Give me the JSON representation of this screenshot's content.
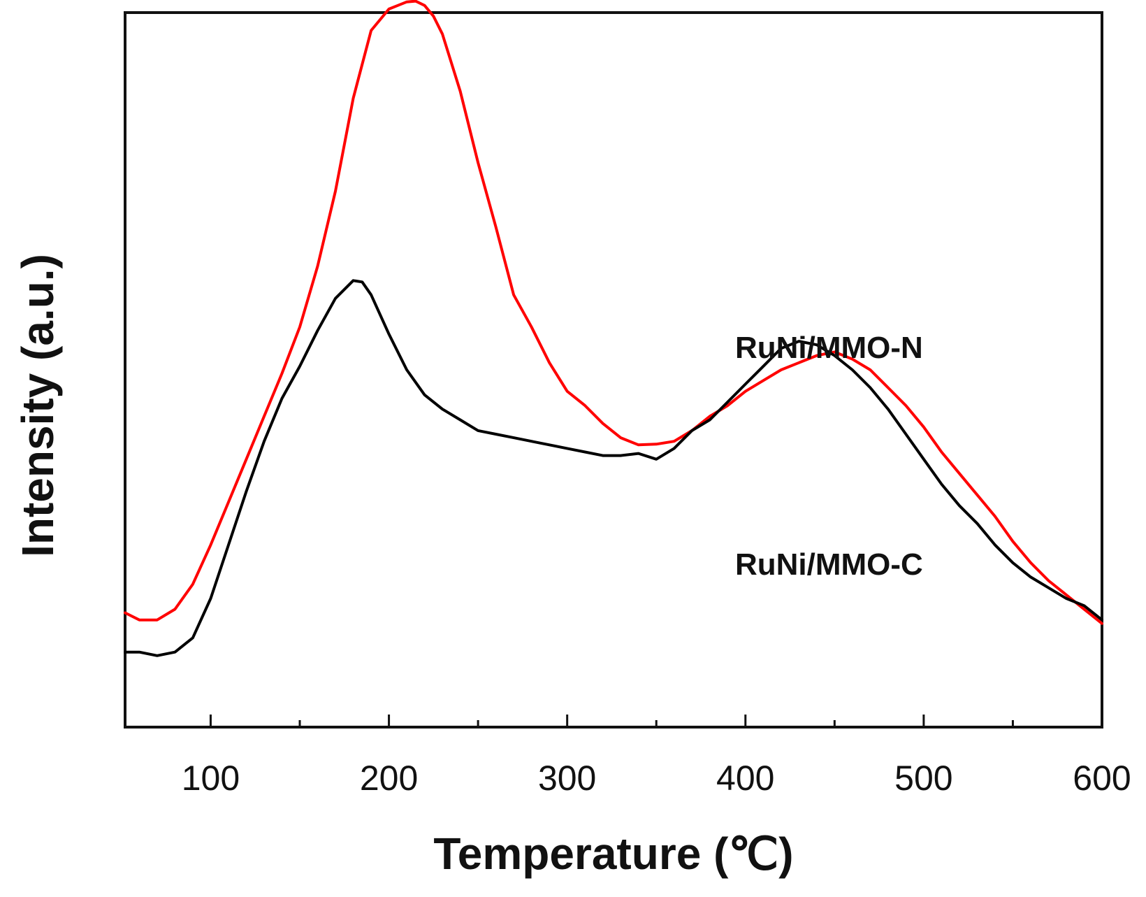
{
  "chart_data": {
    "type": "line",
    "title": "",
    "xlabel": "Temperature (℃)",
    "ylabel": "Intensity (a.u.)",
    "xlim": [
      52,
      600
    ],
    "ylim": [
      0,
      100
    ],
    "x_ticks": [
      100,
      200,
      300,
      400,
      500,
      600
    ],
    "x_tick_labels": [
      "100",
      "200",
      "300",
      "400",
      "500",
      "600"
    ],
    "y_ticks_shown": false,
    "grid": false,
    "series": [
      {
        "name": "RuNi/MMO-N",
        "label": "RuNi/MMO-N",
        "color": "#ff0000",
        "x": [
          52,
          60,
          70,
          80,
          90,
          100,
          110,
          120,
          130,
          140,
          150,
          160,
          170,
          180,
          190,
          200,
          205,
          210,
          215,
          220,
          225,
          230,
          240,
          250,
          260,
          270,
          280,
          290,
          300,
          310,
          320,
          330,
          340,
          350,
          360,
          370,
          380,
          390,
          400,
          410,
          420,
          430,
          440,
          450,
          460,
          470,
          480,
          490,
          500,
          510,
          520,
          530,
          540,
          550,
          560,
          570,
          580,
          590,
          600
        ],
        "y": [
          16.0,
          15.0,
          15.0,
          16.5,
          20.0,
          25.5,
          31.5,
          37.5,
          43.5,
          49.5,
          56.0,
          64.5,
          75.0,
          88.0,
          97.5,
          100.5,
          101.0,
          101.5,
          101.6,
          101.0,
          99.5,
          97.0,
          89.0,
          79.0,
          70.0,
          60.5,
          56.0,
          51.0,
          47.0,
          45.0,
          42.5,
          40.5,
          39.5,
          39.6,
          40.0,
          41.5,
          43.5,
          45.0,
          47.0,
          48.5,
          50.0,
          51.0,
          52.0,
          52.5,
          51.5,
          50.0,
          47.5,
          45.0,
          42.0,
          38.5,
          35.5,
          32.5,
          29.5,
          26.0,
          23.0,
          20.5,
          18.5,
          16.5,
          14.5
        ]
      },
      {
        "name": "RuNi/MMO-C",
        "label": "RuNi/MMO-C",
        "color": "#000000",
        "x": [
          52,
          60,
          70,
          80,
          90,
          100,
          110,
          120,
          130,
          140,
          150,
          160,
          170,
          180,
          185,
          190,
          200,
          210,
          220,
          230,
          240,
          250,
          260,
          270,
          280,
          290,
          300,
          310,
          320,
          330,
          340,
          350,
          360,
          370,
          380,
          390,
          400,
          410,
          420,
          430,
          440,
          450,
          460,
          470,
          480,
          490,
          500,
          510,
          520,
          530,
          540,
          550,
          560,
          570,
          580,
          590,
          600
        ],
        "y": [
          10.5,
          10.5,
          10.0,
          10.5,
          12.5,
          18.0,
          25.5,
          33.0,
          40.0,
          46.0,
          50.5,
          55.5,
          60.0,
          62.5,
          62.3,
          60.5,
          55.0,
          50.0,
          46.5,
          44.5,
          43.0,
          41.5,
          41.0,
          40.5,
          40.0,
          39.5,
          39.0,
          38.5,
          38.0,
          38.0,
          38.3,
          37.5,
          39.0,
          41.5,
          43.0,
          45.5,
          48.0,
          50.5,
          53.0,
          54.0,
          53.5,
          52.0,
          50.0,
          47.5,
          44.5,
          41.0,
          37.5,
          34.0,
          31.0,
          28.5,
          25.5,
          23.0,
          21.0,
          19.5,
          18.0,
          17.0,
          15.0
        ]
      }
    ]
  }
}
